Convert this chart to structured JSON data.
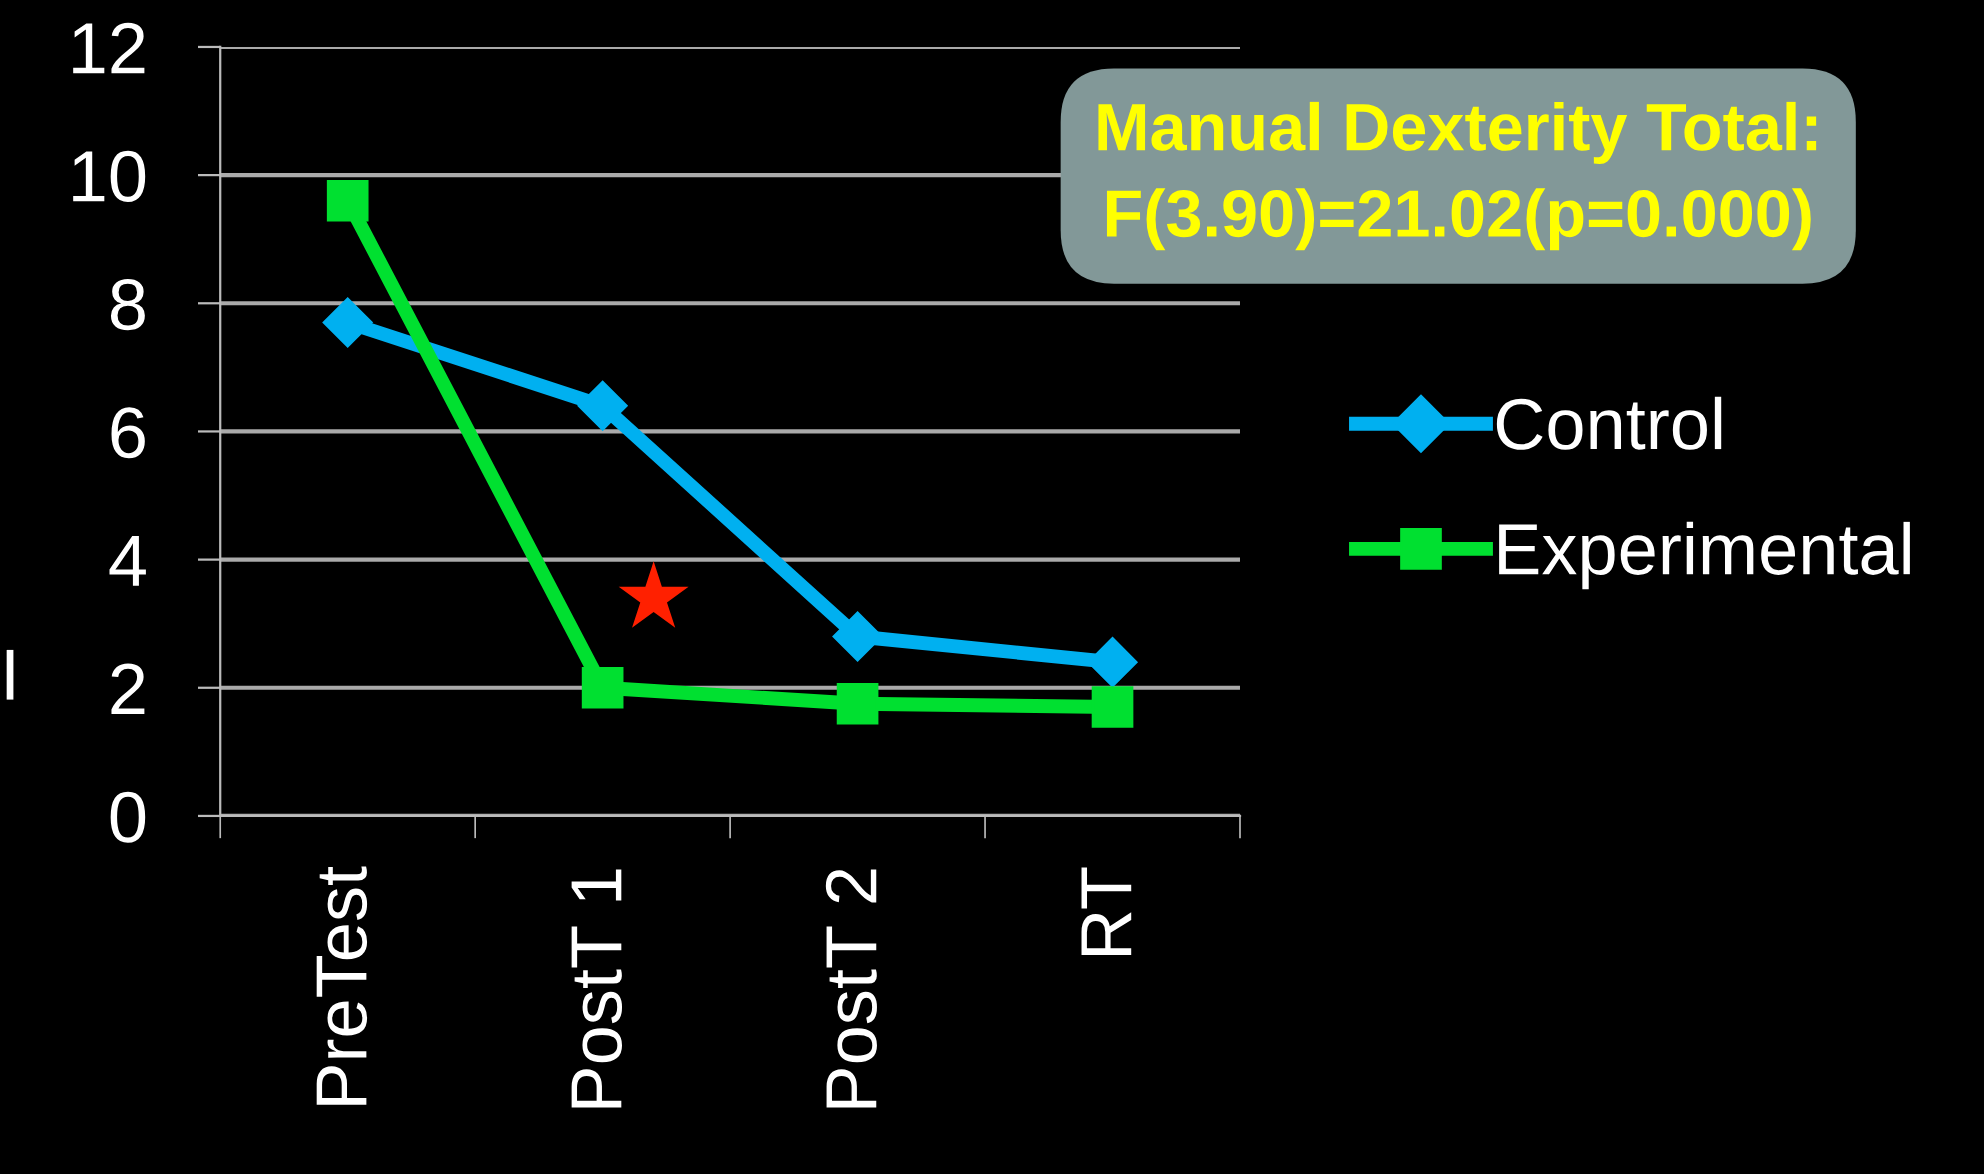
{
  "chart_data": {
    "type": "line",
    "ylabel": "I",
    "categories": [
      "PreTest",
      "PostT 1",
      "PostT 2",
      "RT"
    ],
    "series": [
      {
        "name": "Control",
        "color": "#00b0f0",
        "marker": "diamond",
        "values": [
          7.7,
          6.4,
          2.8,
          2.4
        ]
      },
      {
        "name": "Experimental",
        "color": "#00e030",
        "marker": "square",
        "values": [
          9.6,
          2.0,
          1.75,
          1.7
        ]
      },
      {
        "type": "scatter",
        "color": "#ff2000",
        "marker": "star",
        "values": [
          null,
          3.4,
          null,
          null
        ]
      }
    ],
    "annotations": [
      "Manual Dexterity Total:\nF(3.90)=21.02(p=0.000)"
    ],
    "ylim": [
      0,
      12
    ],
    "yticks": [
      0,
      2,
      4,
      6,
      8,
      10,
      12
    ],
    "grid": "y",
    "legend": "right",
    "line_style": "solid"
  }
}
